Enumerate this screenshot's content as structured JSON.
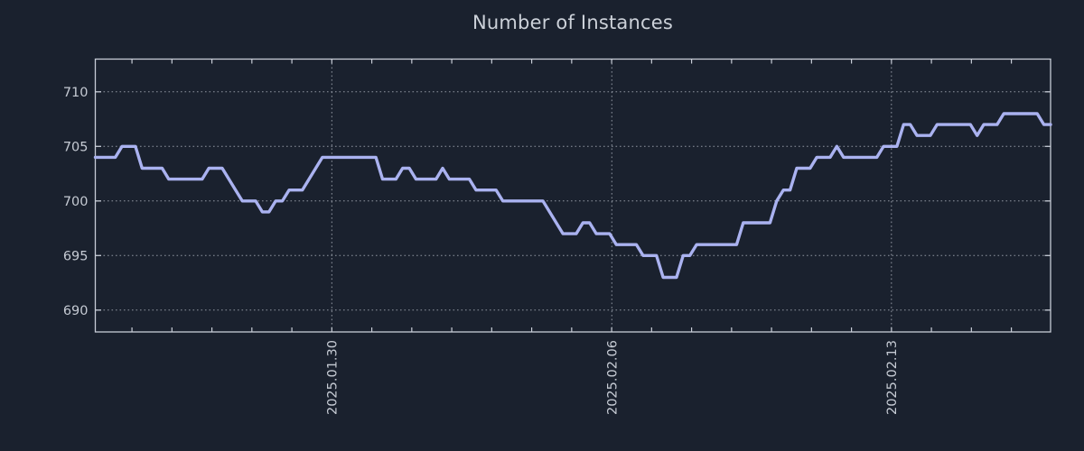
{
  "style": {
    "background": "#1a212e",
    "line_color": "#aab2f0",
    "axis_color": "#c7ccd6",
    "grid_color": "#bcc2cc",
    "label_color": "#c5cad3",
    "title_color": "#ccd1d9"
  },
  "chart_data": {
    "type": "line",
    "title": "Number of Instances",
    "legend": "none",
    "grid": "dotted",
    "y_axis": {
      "ticks": [
        690,
        695,
        700,
        705,
        710
      ],
      "range": [
        688,
        713
      ]
    },
    "x_axis": {
      "major_labels": [
        "2025.01.30",
        "2025.02.06",
        "2025.02.13"
      ],
      "major_fractions": [
        0.2476,
        0.5407,
        0.8334
      ],
      "minor_step_fraction": 0.041845
    },
    "series": [
      {
        "name": "Number of Instances",
        "color": "#aab2f0",
        "values": [
          704,
          704,
          704,
          704,
          705,
          705,
          705,
          703,
          703,
          703,
          703,
          702,
          702,
          702,
          702,
          702,
          702,
          703,
          703,
          703,
          702,
          701,
          700,
          700,
          700,
          699,
          699,
          700,
          700,
          701,
          701,
          701,
          702,
          703,
          704,
          704,
          704,
          704,
          704,
          704,
          704,
          704,
          704,
          702,
          702,
          702,
          703,
          703,
          702,
          702,
          702,
          702,
          703,
          702,
          702,
          702,
          702,
          701,
          701,
          701,
          701,
          700,
          700,
          700,
          700,
          700,
          700,
          700,
          699,
          698,
          697,
          697,
          697,
          698,
          698,
          697,
          697,
          697,
          696,
          696,
          696,
          696,
          695,
          695,
          695,
          693,
          693,
          693,
          695,
          695,
          696,
          696,
          696,
          696,
          696,
          696,
          696,
          698,
          698,
          698,
          698,
          698,
          700,
          701,
          701,
          703,
          703,
          703,
          704,
          704,
          704,
          705,
          704,
          704,
          704,
          704,
          704,
          704,
          705,
          705,
          705,
          707,
          707,
          706,
          706,
          706,
          707,
          707,
          707,
          707,
          707,
          707,
          706,
          707,
          707,
          707,
          708,
          708,
          708,
          708,
          708,
          708,
          707,
          707
        ]
      }
    ]
  }
}
